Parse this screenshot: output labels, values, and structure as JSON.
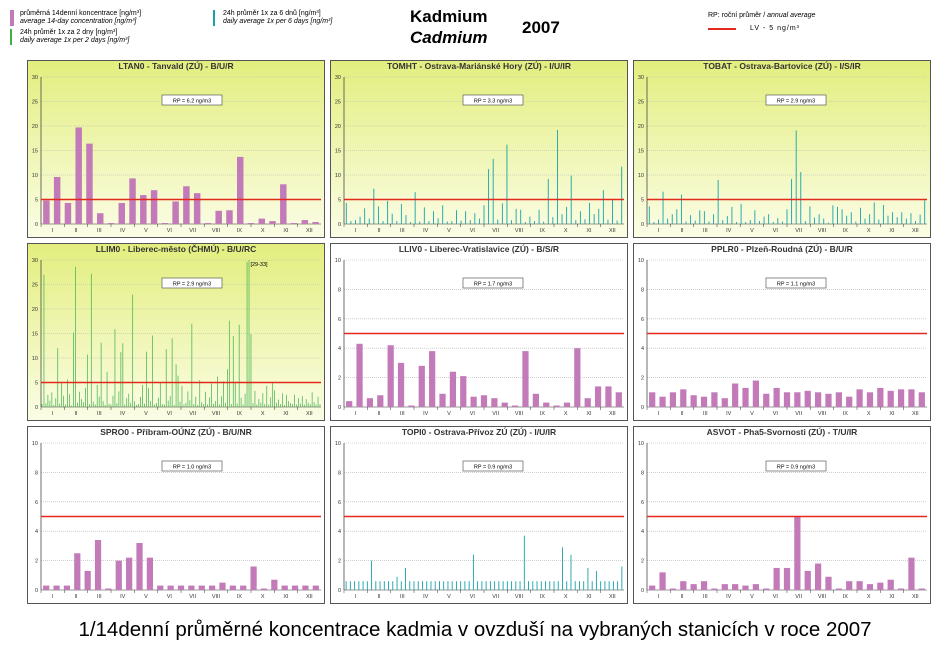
{
  "header": {
    "title_cz": "Kadmium",
    "title_en": "Cadmium",
    "year": "2007",
    "legend": [
      {
        "cz": "průměrná 14denní koncentrace [ng/m³]",
        "en": "average 14-day concentration [ng/m³]",
        "color": "#c27ab8"
      },
      {
        "cz": "24h průměr 1x za 2 dny [ng/m³]",
        "en": "daily average 1x per 2 days [ng/m³]",
        "color": "#3db046"
      },
      {
        "cz": "24h průměr 1x za 6 dnů [ng/m³]",
        "en": "daily average 1x per 6 days [ng/m³]",
        "color": "#17a2a8"
      }
    ],
    "rp_note_cz": "RP: roční průměr /",
    "rp_note_en": "annual average",
    "lv_label": "LV  - 5 ng/m³"
  },
  "caption": "1/14denní průměrné koncentrace kadmia v ovzduší na vybraných stanicích v roce 2007",
  "colors": {
    "bar14": "#c27ab8",
    "green": "#3db046",
    "teal": "#17a2a8",
    "limit": "#e2291c",
    "panel_bg": "#e3ee7e"
  },
  "months": [
    "I",
    "II",
    "III",
    "IV",
    "V",
    "VI",
    "VII",
    "VIII",
    "IX",
    "X",
    "XI",
    "XII"
  ],
  "chart_data": [
    {
      "type": "bar",
      "title": "LTAN0 - Tanvald (ZÚ) - B/U/R",
      "rp": "RP = 6.2 ng/m3",
      "style": "bar14",
      "background": "yellow",
      "ylim": [
        0,
        30
      ],
      "yticks": [
        0,
        5,
        10,
        15,
        20,
        25,
        30
      ],
      "limit": 5,
      "values": [
        4.8,
        9.6,
        4.3,
        19.7,
        16.4,
        2.2,
        0.2,
        4.3,
        9.3,
        5.9,
        6.9,
        0.2,
        4.6,
        7.7,
        6.3,
        0.2,
        2.7,
        2.8,
        13.7,
        0.2,
        1.1,
        0.6,
        8.1,
        0.2,
        0.8,
        0.4
      ]
    },
    {
      "type": "bar",
      "title": "TOMHT - Ostrava-Mariánské Hory (ZÚ) - I/U/IR",
      "rp": "RP = 3.3 ng/m3",
      "style": "teal",
      "background": "yellow",
      "ylim": [
        0,
        30
      ],
      "yticks": [
        0,
        5,
        10,
        15,
        20,
        25,
        30
      ],
      "limit": 5,
      "values": [
        4.3,
        0.6,
        0.8,
        1.5,
        3.2,
        1.1,
        7.2,
        3.6,
        0.6,
        4.7,
        2.1,
        0.6,
        4.1,
        1.8,
        0.4,
        6.5,
        0.5,
        3.4,
        0.6,
        2.6,
        1.2,
        3.8,
        0.5,
        0.6,
        2.8,
        0.7,
        2.6,
        0.8,
        2.2,
        1.1,
        3.8,
        11.2,
        13.3,
        0.9,
        4.2,
        16.2,
        0.8,
        3.1,
        2.9,
        0.4,
        1.5,
        0.6,
        2.9,
        0.5,
        9.2,
        1.4,
        19.2,
        2.0,
        3.5,
        9.9,
        0.8,
        2.6,
        1.0,
        4.3,
        2.0,
        3.1,
        6.9,
        0.9,
        5.1,
        0.7,
        11.7
      ]
    },
    {
      "type": "bar",
      "title": "TOBAT - Ostrava-Bartovice (ZÚ) - I/S/IR",
      "rp": "RP = 2.9 ng/m3",
      "style": "teal",
      "background": "yellow",
      "ylim": [
        0,
        30
      ],
      "yticks": [
        0,
        5,
        10,
        15,
        20,
        25,
        30
      ],
      "limit": 5,
      "values": [
        3.6,
        0.4,
        0.9,
        6.6,
        1.1,
        2.0,
        3.0,
        6.0,
        0.5,
        1.8,
        0.7,
        2.8,
        2.6,
        0.5,
        2.0,
        9.0,
        0.8,
        1.6,
        3.5,
        0.4,
        4.1,
        0.4,
        0.8,
        2.8,
        0.6,
        1.5,
        2.0,
        0.4,
        1.2,
        0.5,
        3.0,
        9.2,
        19.1,
        10.6,
        0.6,
        3.6,
        1.3,
        2.0,
        1.1,
        0.3,
        3.8,
        3.5,
        3.0,
        1.7,
        2.4,
        0.5,
        3.3,
        1.1,
        2.0,
        4.4,
        0.9,
        3.9,
        1.7,
        2.4,
        1.4,
        2.4,
        1.1,
        2.2,
        0.6,
        1.9,
        4.8
      ]
    },
    {
      "type": "bar",
      "title": "LLIM0 - Liberec-město (ČHMÚ) - B/U/RC",
      "rp": "RP = 2.9 ng/m3",
      "style": "green",
      "background": "yellow",
      "ylim": [
        0,
        30
      ],
      "yticks": [
        0,
        5,
        10,
        15,
        20,
        25,
        30
      ],
      "limit": 5,
      "annotation": "[29-33]",
      "values": [
        0.6,
        27.0,
        0.8,
        2.5,
        1.3,
        3.0,
        0.4,
        1.8,
        12.0,
        0.7,
        5.1,
        2.3,
        0.5,
        5.6,
        2.6,
        0.3,
        15.2,
        28.6,
        0.9,
        3.1,
        1.6,
        1.0,
        3.9,
        10.7,
        0.6,
        27.2,
        1.1,
        0.5,
        4.5,
        2.1,
        13.1,
        1.2,
        0.4,
        7.2,
        0.7,
        0.5,
        2.3,
        15.9,
        0.8,
        3.2,
        11.2,
        13.0,
        0.5,
        1.8,
        2.7,
        0.9,
        22.9,
        1.2,
        0.4,
        0.6,
        2.1,
        4.5,
        0.7,
        11.3,
        3.9,
        1.2,
        14.6,
        0.5,
        0.8,
        1.9,
        5.0,
        0.6,
        0.5,
        11.8,
        1.3,
        2.2,
        14.0,
        0.4,
        8.7,
        6.4,
        1.1,
        4.3,
        0.5,
        0.9,
        3.2,
        1.4,
        17.0,
        0.6,
        2.1,
        0.4,
        5.5,
        1.0,
        0.6,
        3.1,
        0.5,
        2.0,
        4.8,
        0.7,
        1.2,
        6.2,
        0.5,
        2.2,
        5.2,
        0.9,
        7.7,
        17.6,
        0.6,
        14.5,
        5.1,
        0.7,
        16.8,
        1.9,
        0.5,
        2.7,
        29.6,
        30.0,
        14.9,
        0.8,
        3.3,
        0.5,
        1.6,
        0.9,
        2.8,
        0.6,
        4.3,
        0.5,
        2.0,
        5.0,
        3.4,
        0.9,
        1.5,
        0.6,
        2.8,
        0.4,
        2.5,
        1.2,
        0.8,
        0.6,
        2.5,
        0.5,
        1.8,
        0.7,
        2.2,
        0.5,
        1.6,
        0.9,
        0.6,
        3.0,
        1.0,
        0.5,
        2.1,
        0.6
      ]
    },
    {
      "type": "bar",
      "title": "LLIV0 - Liberec-Vratislavice (ZÚ) - B/S/R",
      "rp": "RP = 1.7 ng/m3",
      "style": "bar14",
      "background": "white",
      "ylim": [
        0,
        10
      ],
      "yticks": [
        0,
        2,
        4,
        6,
        8,
        10
      ],
      "limit": 5,
      "values": [
        0.4,
        4.3,
        0.6,
        0.8,
        4.2,
        3.0,
        0.1,
        2.8,
        3.8,
        0.9,
        2.4,
        2.1,
        0.7,
        0.8,
        0.6,
        0.3,
        0.1,
        3.8,
        0.9,
        0.3,
        0.1,
        0.3,
        4.0,
        0.6,
        1.4,
        1.4,
        1.0
      ]
    },
    {
      "type": "bar",
      "title": "PPLR0 - Plzeň-Roudná (ZÚ) - B/U/R",
      "rp": "RP = 1.1 ng/m3",
      "style": "bar14",
      "background": "white",
      "ylim": [
        0,
        10
      ],
      "yticks": [
        0,
        2,
        4,
        6,
        8,
        10
      ],
      "limit": 5,
      "values": [
        1.0,
        0.7,
        1.0,
        1.2,
        0.8,
        0.7,
        1.0,
        0.6,
        1.6,
        1.3,
        1.8,
        0.9,
        1.3,
        1.0,
        1.0,
        1.1,
        1.0,
        0.9,
        1.0,
        0.7,
        1.2,
        1.0,
        1.3,
        1.1,
        1.2,
        1.2,
        1.0
      ]
    },
    {
      "type": "bar",
      "title": "SPRO0 - Příbram-OÚNZ (ZÚ) - B/U/NR",
      "rp": "RP = 1.0 ng/m3",
      "style": "bar14",
      "background": "white",
      "ylim": [
        0,
        10
      ],
      "yticks": [
        0,
        2,
        4,
        6,
        8,
        10
      ],
      "limit": 5,
      "values": [
        0.3,
        0.3,
        0.3,
        2.5,
        1.3,
        3.4,
        0.1,
        2.0,
        2.2,
        3.2,
        2.2,
        0.3,
        0.3,
        0.3,
        0.3,
        0.3,
        0.3,
        0.5,
        0.3,
        0.3,
        1.6,
        0.1,
        0.7,
        0.3,
        0.3,
        0.3,
        0.3
      ]
    },
    {
      "type": "bar",
      "title": "TOPI0 - Ostrava-Přívoz ZÚ (ZÚ) - I/U/IR",
      "rp": "RP = 0.9 ng/m3",
      "style": "teal",
      "background": "white",
      "ylim": [
        0,
        10
      ],
      "yticks": [
        0,
        2,
        4,
        6,
        8,
        10
      ],
      "limit": 5,
      "values": [
        0.6,
        0.6,
        0.6,
        0.6,
        0.6,
        0.6,
        2.0,
        0.6,
        0.6,
        0.6,
        0.6,
        0.6,
        0.9,
        0.6,
        1.5,
        0.6,
        0.6,
        0.6,
        0.6,
        0.6,
        0.6,
        0.6,
        0.6,
        0.6,
        0.6,
        0.6,
        0.6,
        0.6,
        0.6,
        0.6,
        2.4,
        0.6,
        0.6,
        0.6,
        0.6,
        0.6,
        0.6,
        0.6,
        0.6,
        0.6,
        0.6,
        0.6,
        3.7,
        0.6,
        0.6,
        0.6,
        0.6,
        0.6,
        0.6,
        0.6,
        0.6,
        2.9,
        0.6,
        2.4,
        0.6,
        0.6,
        0.6,
        1.5,
        0.6,
        1.3,
        0.6,
        0.6,
        0.6,
        0.6,
        0.6,
        1.6
      ]
    },
    {
      "type": "bar",
      "title": "ASVOT - Pha5-Svornosti (ZÚ) - T/U/IR",
      "rp": "RP = 0.9 ng/m3",
      "style": "bar14",
      "background": "white",
      "ylim": [
        0,
        10
      ],
      "yticks": [
        0,
        2,
        4,
        6,
        8,
        10
      ],
      "limit": 5,
      "values": [
        0.3,
        1.2,
        0.1,
        0.6,
        0.4,
        0.6,
        0.1,
        0.4,
        0.4,
        0.3,
        0.4,
        0.1,
        1.5,
        1.5,
        5.0,
        1.3,
        1.8,
        0.9,
        0.1,
        0.6,
        0.6,
        0.4,
        0.5,
        0.7,
        0.1,
        2.2,
        0.1
      ]
    }
  ]
}
